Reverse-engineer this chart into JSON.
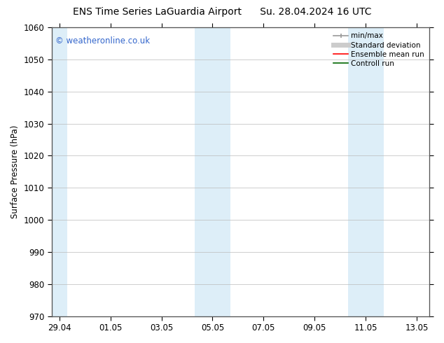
{
  "title_left": "ENS Time Series LaGuardia Airport",
  "title_right": "Su. 28.04.2024 16 UTC",
  "ylabel": "Surface Pressure (hPa)",
  "ylim": [
    970,
    1060
  ],
  "yticks": [
    970,
    980,
    990,
    1000,
    1010,
    1020,
    1030,
    1040,
    1050,
    1060
  ],
  "xtick_labels": [
    "29.04",
    "01.05",
    "03.05",
    "05.05",
    "07.05",
    "09.05",
    "11.05",
    "13.05"
  ],
  "xtick_positions": [
    0,
    2,
    4,
    6,
    8,
    10,
    12,
    14
  ],
  "xlim": [
    -0.3,
    14.5
  ],
  "shaded_bands": [
    {
      "x_start": -0.3,
      "x_end": 0.3,
      "color": "#ddeef8"
    },
    {
      "x_start": 5.3,
      "x_end": 6.0,
      "color": "#ddeef8"
    },
    {
      "x_start": 6.0,
      "x_end": 6.7,
      "color": "#ddeef8"
    },
    {
      "x_start": 11.3,
      "x_end": 12.0,
      "color": "#ddeef8"
    },
    {
      "x_start": 12.0,
      "x_end": 12.7,
      "color": "#ddeef8"
    }
  ],
  "background_color": "#ffffff",
  "plot_bg_color": "#ffffff",
  "grid_color": "#bbbbbb",
  "watermark_text": "© weatheronline.co.uk",
  "watermark_color": "#3366cc",
  "legend_entries": [
    {
      "label": "min/max",
      "color": "#999999",
      "lw": 1.2,
      "ls": "-",
      "marker": "|"
    },
    {
      "label": "Standard deviation",
      "color": "#cccccc",
      "lw": 5,
      "ls": "-",
      "marker": ""
    },
    {
      "label": "Ensemble mean run",
      "color": "#ff0000",
      "lw": 1.2,
      "ls": "-",
      "marker": ""
    },
    {
      "label": "Controll run",
      "color": "#006600",
      "lw": 1.2,
      "ls": "-",
      "marker": ""
    }
  ],
  "title_fontsize": 10,
  "legend_fontsize": 7.5,
  "tick_fontsize": 8.5,
  "ylabel_fontsize": 8.5,
  "watermark_fontsize": 8.5
}
